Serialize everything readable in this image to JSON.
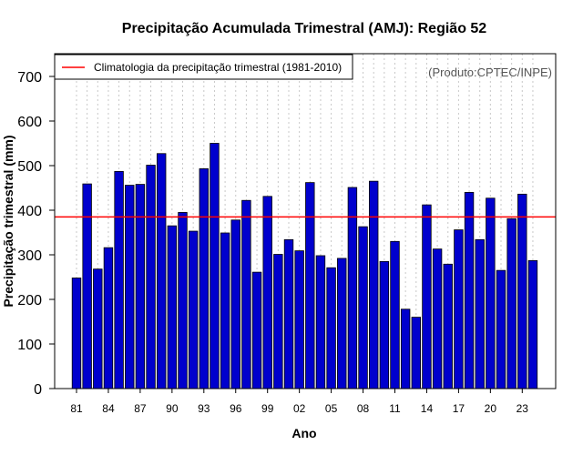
{
  "chart_data": {
    "type": "bar",
    "title": "Precipitação Acumulada Trimestral (AMJ): Região 52",
    "xlabel": "Ano",
    "ylabel": "Precipitação trimestral (mm)",
    "source": "(Produto:CPTEC/INPE)",
    "legend": "Climatologia da precipitação trimestral (1981-2010)",
    "legend_position": "top-left",
    "climatology": 385,
    "ylim": [
      0,
      750
    ],
    "yticks": [
      0,
      100,
      200,
      300,
      400,
      500,
      600,
      700
    ],
    "years": [
      1981,
      1982,
      1983,
      1984,
      1985,
      1986,
      1987,
      1988,
      1989,
      1990,
      1991,
      1992,
      1993,
      1994,
      1995,
      1996,
      1997,
      1998,
      1999,
      2000,
      2001,
      2002,
      2003,
      2004,
      2005,
      2006,
      2007,
      2008,
      2009,
      2010,
      2011,
      2012,
      2013,
      2014,
      2015,
      2016,
      2017,
      2018,
      2019,
      2020,
      2021,
      2022,
      2023,
      2024
    ],
    "xtick_labels": [
      "81",
      "84",
      "87",
      "90",
      "93",
      "96",
      "99",
      "02",
      "05",
      "08",
      "11",
      "14",
      "17",
      "20",
      "23"
    ],
    "xtick_years": [
      1981,
      1984,
      1987,
      1990,
      1993,
      1996,
      1999,
      2002,
      2005,
      2008,
      2011,
      2014,
      2017,
      2020,
      2023
    ],
    "values": [
      248,
      459,
      268,
      316,
      487,
      456,
      458,
      501,
      527,
      365,
      395,
      353,
      493,
      550,
      349,
      378,
      422,
      261,
      431,
      301,
      334,
      309,
      462,
      298,
      271,
      292,
      451,
      363,
      465,
      285,
      330,
      178,
      160,
      412,
      313,
      279,
      356,
      440,
      334,
      427,
      265,
      381,
      436,
      287
    ],
    "bar_color": "#0000CD",
    "line_color": "#FF0000"
  }
}
